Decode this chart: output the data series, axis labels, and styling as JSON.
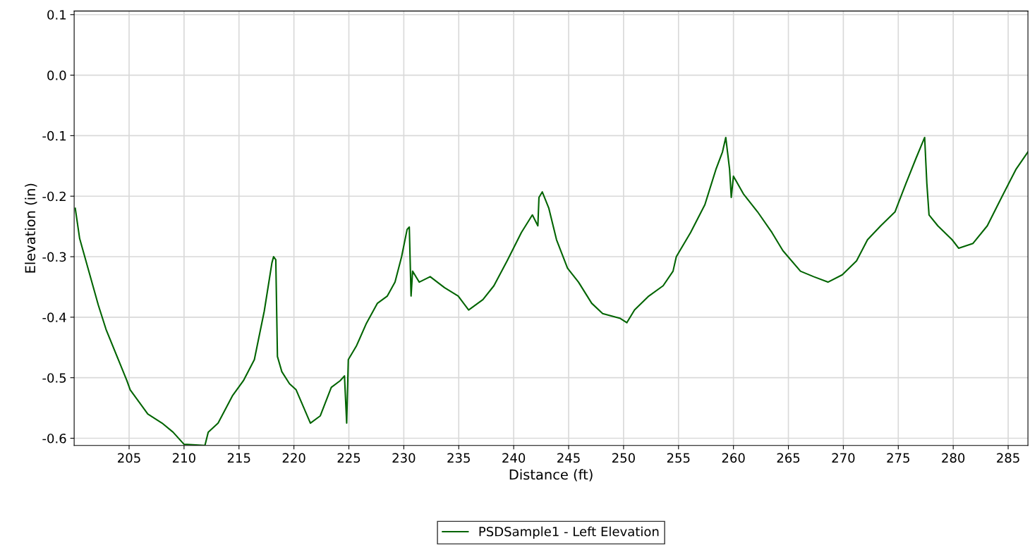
{
  "chart_data": {
    "type": "line",
    "xlabel": "Distance (ft)",
    "ylabel": "Elevation (in)",
    "xlim": [
      200.0,
      286.8
    ],
    "ylim": [
      -0.612,
      0.106
    ],
    "xticks": [
      205,
      210,
      215,
      220,
      225,
      230,
      235,
      240,
      245,
      250,
      255,
      260,
      265,
      270,
      275,
      280,
      285
    ],
    "yticks": [
      0.1,
      {
        "value": 0,
        "label": "0.0"
      },
      -0.1,
      -0.2,
      -0.3,
      -0.4,
      -0.5,
      -0.6
    ],
    "grid": true,
    "legend": "bottom",
    "marker": "none",
    "line_style": "solid",
    "series": [
      {
        "name": "PSDSample1 - Left Elevation",
        "color": "#006400",
        "x": [
          200.1,
          200.5,
          202.2,
          202.9,
          204.8,
          205.1,
          206.7,
          208.0,
          209.0,
          210.0,
          211.9,
          212.2,
          213.1,
          214.4,
          215.4,
          216.4,
          217.3,
          218.0,
          218.15,
          218.35,
          218.5,
          218.9,
          219.6,
          220.2,
          221.5,
          222.4,
          223.4,
          224.2,
          224.6,
          224.8,
          224.95,
          225.7,
          226.6,
          227.6,
          228.5,
          229.2,
          229.8,
          230.3,
          230.5,
          230.66,
          230.8,
          231.4,
          232.4,
          233.7,
          234.95,
          235.9,
          237.2,
          238.2,
          239.4,
          240.7,
          241.7,
          242.2,
          242.3,
          242.6,
          243.2,
          243.9,
          244.9,
          245.9,
          247.1,
          248.1,
          249.7,
          250.3,
          251.0,
          252.3,
          253.6,
          254.5,
          254.8,
          256.1,
          257.4,
          258.4,
          259.0,
          259.3,
          259.65,
          259.8,
          260.0,
          260.9,
          262.2,
          263.5,
          264.5,
          266.1,
          267.3,
          268.6,
          269.9,
          271.2,
          272.2,
          273.4,
          274.7,
          275.7,
          276.6,
          277.4,
          277.6,
          277.8,
          278.6,
          279.9,
          280.5,
          281.8,
          283.1,
          284.4,
          285.7,
          286.8
        ],
        "values": [
          -0.22,
          -0.27,
          -0.38,
          -0.42,
          -0.505,
          -0.52,
          -0.56,
          -0.575,
          -0.59,
          -0.61,
          -0.612,
          -0.59,
          -0.575,
          -0.53,
          -0.505,
          -0.47,
          -0.39,
          -0.31,
          -0.3,
          -0.305,
          -0.465,
          -0.49,
          -0.51,
          -0.52,
          -0.575,
          -0.563,
          -0.516,
          -0.505,
          -0.497,
          -0.575,
          -0.47,
          -0.447,
          -0.41,
          -0.377,
          -0.365,
          -0.342,
          -0.3,
          -0.255,
          -0.251,
          -0.365,
          -0.324,
          -0.342,
          -0.333,
          -0.351,
          -0.365,
          -0.388,
          -0.371,
          -0.348,
          -0.307,
          -0.26,
          -0.231,
          -0.249,
          -0.202,
          -0.193,
          -0.22,
          -0.272,
          -0.319,
          -0.342,
          -0.377,
          -0.394,
          -0.402,
          -0.409,
          -0.388,
          -0.365,
          -0.348,
          -0.324,
          -0.3,
          -0.26,
          -0.214,
          -0.156,
          -0.127,
          -0.103,
          -0.156,
          -0.202,
          -0.167,
          -0.196,
          -0.226,
          -0.26,
          -0.29,
          -0.324,
          -0.333,
          -0.342,
          -0.33,
          -0.307,
          -0.272,
          -0.249,
          -0.226,
          -0.179,
          -0.138,
          -0.103,
          -0.179,
          -0.231,
          -0.249,
          -0.272,
          -0.286,
          -0.278,
          -0.249,
          -0.202,
          -0.156,
          -0.127
        ]
      }
    ]
  }
}
